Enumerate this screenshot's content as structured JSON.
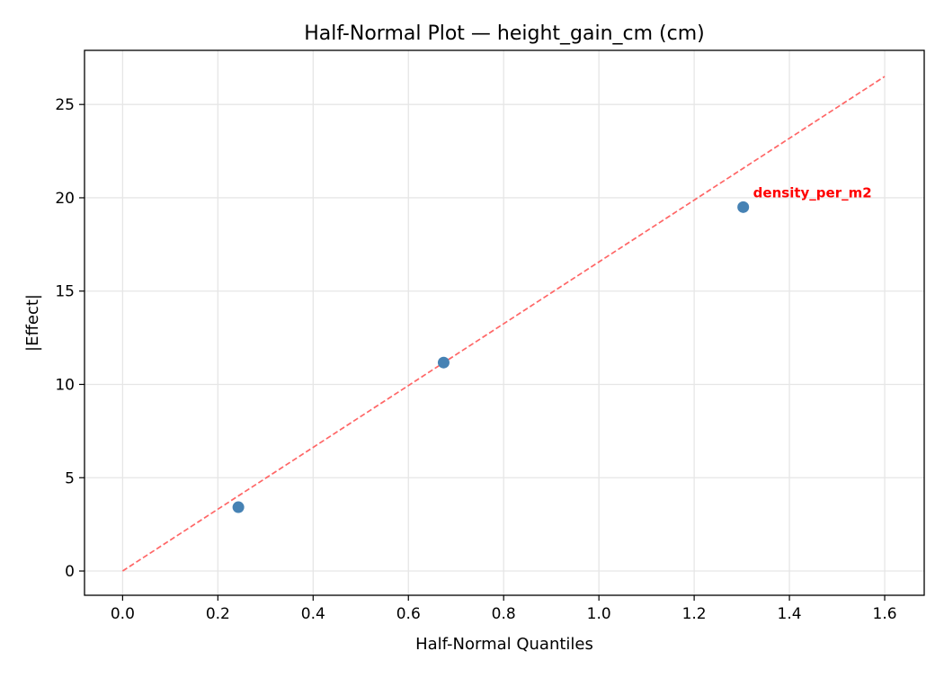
{
  "chart_data": {
    "type": "scatter",
    "title": "Half-Normal Plot — height_gain_cm (cm)",
    "xlabel": "Half-Normal Quantiles",
    "ylabel": "|Effect|",
    "xlim": [
      -0.08,
      1.683
    ],
    "ylim": [
      -1.3,
      27.9
    ],
    "xticks": [
      0.0,
      0.2,
      0.4,
      0.6,
      0.8,
      1.0,
      1.2,
      1.4,
      1.6
    ],
    "xtick_labels": [
      "0.0",
      "0.2",
      "0.4",
      "0.6",
      "0.8",
      "1.0",
      "1.2",
      "1.4",
      "1.6"
    ],
    "yticks": [
      0,
      5,
      10,
      15,
      20,
      25
    ],
    "ytick_labels": [
      "0",
      "5",
      "10",
      "15",
      "20",
      "25"
    ],
    "grid": true,
    "points": [
      {
        "x": 0.243,
        "y": 3.42,
        "label": ""
      },
      {
        "x": 0.674,
        "y": 11.17,
        "label": ""
      },
      {
        "x": 1.303,
        "y": 19.5,
        "label": "density_per_m2"
      }
    ],
    "reference_line": {
      "x": [
        0.0,
        1.6
      ],
      "y": [
        0.0,
        26.5
      ],
      "style": "dashed"
    },
    "colors": {
      "points": "#4682b4",
      "reference_line": "#ff6666",
      "annotation": "#ff0000",
      "grid": "#e6e6e6"
    }
  }
}
